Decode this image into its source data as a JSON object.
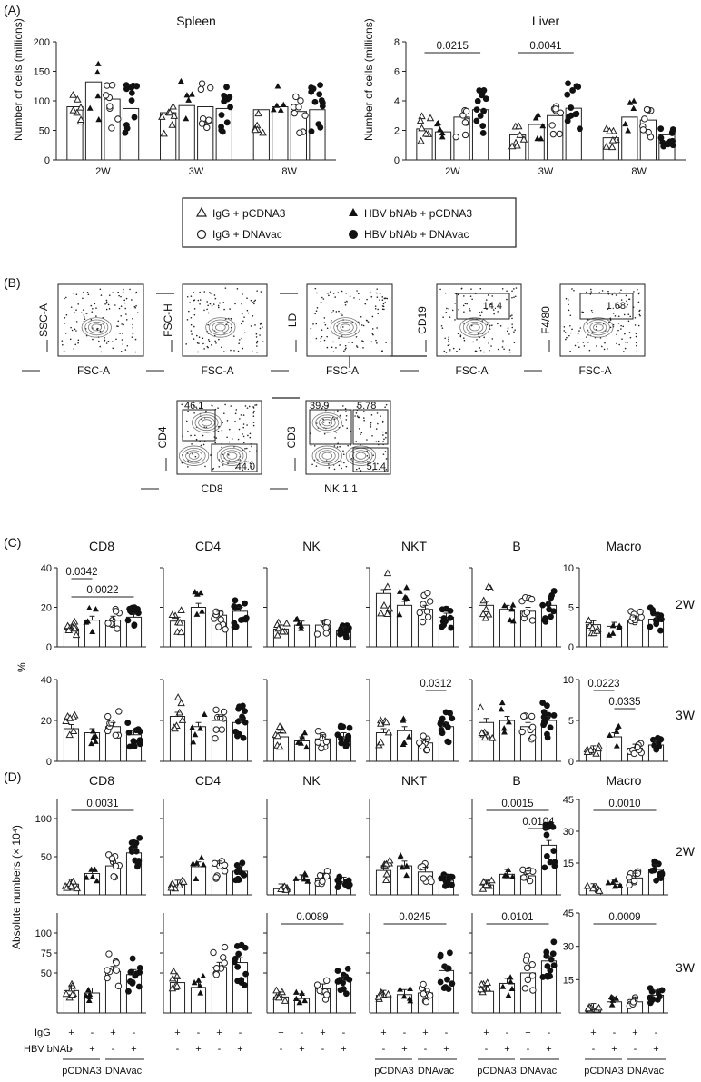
{
  "panels": {
    "A": "(A)",
    "B": "(B)",
    "C": "(C)",
    "D": "(D)"
  },
  "section_a": {
    "ylabel": "Number of cells (millions)",
    "groups": [
      "2W",
      "3W",
      "8W"
    ],
    "legend": [
      "IgG + pCDNA3",
      "HBV bNAb + pCDNA3",
      "IgG + DNAvac",
      "HBV bNAb + DNAvac"
    ]
  },
  "section_b": {
    "gates": [
      {
        "y": "SSC-A",
        "x": "FSC-A",
        "value": ""
      },
      {
        "y": "FSC-H",
        "x": "FSC-A",
        "value": ""
      },
      {
        "y": "LD",
        "x": "FSC-A",
        "value": ""
      },
      {
        "y": "CD19",
        "x": "FSC-A",
        "value": "14.4"
      },
      {
        "y": "F4/80",
        "x": "FSC-A",
        "value": "1.68"
      },
      {
        "y": "CD4",
        "x": "CD8",
        "values": [
          "46.1",
          "44.0"
        ]
      },
      {
        "y": "CD3",
        "x": "NK 1.1",
        "values": [
          "39.9",
          "5.78",
          "51.4"
        ]
      }
    ]
  },
  "section_c": {
    "ylabel": "%",
    "row_labels": [
      "2W",
      "3W"
    ]
  },
  "section_d": {
    "ylabel": "Absolute numbers (× 10⁴)",
    "row_labels": [
      "2W",
      "3W"
    ],
    "x_rows": {
      "IgG": [
        "+",
        "-",
        "+",
        "-"
      ],
      "HBV bNAb": [
        "-",
        "+",
        "-",
        "+"
      ],
      "groups": [
        "pCDNA3",
        "DNAvac"
      ],
      "row_names": [
        "IgG",
        "HBV bNAb"
      ]
    }
  },
  "chart_data": [
    {
      "type": "bar",
      "panel": "A",
      "title": "Spleen",
      "ylabel": "Number of cells (millions)",
      "ylim": [
        0,
        200
      ],
      "yticks": [
        0,
        50,
        100,
        150,
        200
      ],
      "categories": [
        "2W",
        "3W",
        "8W"
      ],
      "series": [
        {
          "name": "IgG + pCDNA3",
          "values": [
            90,
            80,
            85
          ]
        },
        {
          "name": "HBV bNAb + pCDNA3",
          "values": [
            132,
            92,
            90
          ]
        },
        {
          "name": "IgG + DNAvac",
          "values": [
            103,
            90,
            82
          ]
        },
        {
          "name": "HBV bNAb + DNAvac",
          "values": [
            87,
            87,
            85
          ]
        }
      ],
      "annotations": []
    },
    {
      "type": "bar",
      "panel": "A",
      "title": "Liver",
      "ylabel": "Number of cells (millions)",
      "ylim": [
        0,
        8
      ],
      "yticks": [
        0,
        2,
        4,
        6,
        8
      ],
      "categories": [
        "2W",
        "3W",
        "8W"
      ],
      "series": [
        {
          "name": "IgG + pCDNA3",
          "values": [
            2.1,
            1.7,
            1.5
          ]
        },
        {
          "name": "HBV bNAb + pCDNA3",
          "values": [
            1.9,
            2.4,
            2.9
          ]
        },
        {
          "name": "IgG + DNAvac",
          "values": [
            2.9,
            3.0,
            2.7
          ]
        },
        {
          "name": "HBV bNAb + DNAvac",
          "values": [
            3.4,
            3.5,
            1.7
          ]
        }
      ],
      "annotations": [
        {
          "text": "0.0215",
          "from": "2W:IgG + pCDNA3",
          "to": "2W:HBV bNAb + DNAvac"
        },
        {
          "text": "0.0041",
          "from": "3W:IgG + pCDNA3",
          "to": "3W:HBV bNAb + DNAvac"
        }
      ]
    },
    {
      "type": "bar",
      "panel": "C",
      "title": "CD8",
      "row": "2W",
      "ylim": [
        0,
        40
      ],
      "yticks": [
        0,
        20,
        40
      ],
      "categories": [
        "IgG + pCDNA3",
        "HBV bNAb + pCDNA3",
        "IgG + DNAvac",
        "HBV bNAb + DNAvac"
      ],
      "values": [
        9,
        13.5,
        13.5,
        15
      ],
      "annotations": [
        {
          "text": "0.0342",
          "from": 0,
          "to": 1
        },
        {
          "text": "0.0022",
          "from": 0,
          "to": 3
        }
      ]
    },
    {
      "type": "bar",
      "panel": "C",
      "title": "CD4",
      "row": "2W",
      "ylim": [
        0,
        40
      ],
      "yticks": [
        0,
        20,
        40
      ],
      "categories": [
        "IgG + pCDNA3",
        "HBV bNAb + pCDNA3",
        "IgG + DNAvac",
        "HBV bNAb + DNAvac"
      ],
      "values": [
        13,
        20,
        16,
        18
      ],
      "annotations": []
    },
    {
      "type": "bar",
      "panel": "C",
      "title": "NK",
      "row": "2W",
      "ylim": [
        0,
        40
      ],
      "yticks": [
        0,
        20,
        40
      ],
      "categories": [
        "IgG + pCDNA3",
        "HBV bNAb + pCDNA3",
        "IgG + DNAvac",
        "HBV bNAb + DNAvac"
      ],
      "values": [
        9,
        11,
        11,
        8
      ],
      "annotations": []
    },
    {
      "type": "bar",
      "panel": "C",
      "title": "NKT",
      "row": "2W",
      "ylim": [
        0,
        40
      ],
      "yticks": [
        0,
        20,
        40
      ],
      "categories": [
        "IgG + pCDNA3",
        "HBV bNAb + pCDNA3",
        "IgG + DNAvac",
        "HBV bNAb + DNAvac"
      ],
      "values": [
        27,
        21,
        19,
        15
      ],
      "annotations": []
    },
    {
      "type": "bar",
      "panel": "C",
      "title": "B",
      "row": "2W",
      "ylim": [
        0,
        40
      ],
      "yticks": [
        0,
        20,
        40
      ],
      "categories": [
        "IgG + pCDNA3",
        "HBV bNAb + pCDNA3",
        "IgG + DNAvac",
        "HBV bNAb + DNAvac"
      ],
      "values": [
        21,
        19,
        18,
        21
      ],
      "annotations": []
    },
    {
      "type": "bar",
      "panel": "C",
      "title": "Macro",
      "row": "2W",
      "ylim": [
        0,
        10
      ],
      "yticks": [
        0,
        5,
        10
      ],
      "categories": [
        "IgG + pCDNA3",
        "HBV bNAb + pCDNA3",
        "IgG + DNAvac",
        "HBV bNAb + DNAvac"
      ],
      "values": [
        2.8,
        2.6,
        3.3,
        3.5
      ],
      "annotations": []
    },
    {
      "type": "bar",
      "panel": "C",
      "title": "CD8",
      "row": "3W",
      "ylim": [
        0,
        40
      ],
      "yticks": [
        0,
        20,
        40
      ],
      "categories": [
        "IgG + pCDNA3",
        "HBV bNAb + pCDNA3",
        "IgG + DNAvac",
        "HBV bNAb + DNAvac"
      ],
      "values": [
        16,
        14,
        17,
        13
      ],
      "annotations": []
    },
    {
      "type": "bar",
      "panel": "C",
      "title": "CD4",
      "row": "3W",
      "ylim": [
        0,
        40
      ],
      "yticks": [
        0,
        20,
        40
      ],
      "categories": [
        "IgG + pCDNA3",
        "HBV bNAb + pCDNA3",
        "IgG + DNAvac",
        "HBV bNAb + DNAvac"
      ],
      "values": [
        22,
        17,
        20,
        19
      ],
      "annotations": []
    },
    {
      "type": "bar",
      "panel": "C",
      "title": "NK",
      "row": "3W",
      "ylim": [
        0,
        40
      ],
      "yticks": [
        0,
        20,
        40
      ],
      "categories": [
        "IgG + pCDNA3",
        "HBV bNAb + pCDNA3",
        "IgG + DNAvac",
        "HBV bNAb + DNAvac"
      ],
      "values": [
        12,
        10,
        11,
        12
      ],
      "annotations": []
    },
    {
      "type": "bar",
      "panel": "C",
      "title": "NKT",
      "row": "3W",
      "ylim": [
        0,
        40
      ],
      "yticks": [
        0,
        20,
        40
      ],
      "categories": [
        "IgG + pCDNA3",
        "HBV bNAb + pCDNA3",
        "IgG + DNAvac",
        "HBV bNAb + DNAvac"
      ],
      "values": [
        14,
        15,
        9,
        17
      ],
      "annotations": [
        {
          "text": "0.0312",
          "from": 2,
          "to": 3
        }
      ]
    },
    {
      "type": "bar",
      "panel": "C",
      "title": "B",
      "row": "3W",
      "ylim": [
        0,
        40
      ],
      "yticks": [
        0,
        20,
        40
      ],
      "categories": [
        "IgG + pCDNA3",
        "HBV bNAb + pCDNA3",
        "IgG + DNAvac",
        "HBV bNAb + DNAvac"
      ],
      "values": [
        19,
        20,
        17,
        20
      ],
      "annotations": []
    },
    {
      "type": "bar",
      "panel": "C",
      "title": "Macro",
      "row": "3W",
      "ylim": [
        0,
        10
      ],
      "yticks": [
        0,
        5,
        10
      ],
      "categories": [
        "IgG + pCDNA3",
        "HBV bNAb + pCDNA3",
        "IgG + DNAvac",
        "HBV bNAb + DNAvac"
      ],
      "values": [
        1.4,
        3.0,
        1.6,
        2.0
      ],
      "annotations": [
        {
          "text": "0.0223",
          "from": 0,
          "to": 1
        },
        {
          "text": "0.0335",
          "from": 1,
          "to": 2
        }
      ]
    },
    {
      "type": "bar",
      "panel": "D",
      "title": "CD8",
      "row": "2W",
      "ylim": [
        0,
        125
      ],
      "yticks": [
        50,
        100
      ],
      "categories": [
        "IgG + pCDNA3",
        "HBV bNAb + pCDNA3",
        "IgG + DNAvac",
        "HBV bNAb + DNAvac"
      ],
      "values": [
        14,
        28,
        38,
        55
      ],
      "annotations": [
        {
          "text": "0.0031",
          "from": 0,
          "to": 3
        }
      ]
    },
    {
      "type": "bar",
      "panel": "D",
      "title": "CD4",
      "row": "2W",
      "ylim": [
        0,
        125
      ],
      "yticks": [
        50,
        100
      ],
      "categories": [
        "IgG + pCDNA3",
        "HBV bNAb + pCDNA3",
        "IgG + DNAvac",
        "HBV bNAb + DNAvac"
      ],
      "values": [
        13,
        37,
        38,
        31
      ],
      "annotations": []
    },
    {
      "type": "bar",
      "panel": "D",
      "title": "NK",
      "row": "2W",
      "ylim": [
        0,
        125
      ],
      "yticks": [
        50,
        100
      ],
      "categories": [
        "IgG + pCDNA3",
        "HBV bNAb + pCDNA3",
        "IgG + DNAvac",
        "HBV bNAb + DNAvac"
      ],
      "values": [
        8,
        20,
        22,
        17
      ],
      "annotations": []
    },
    {
      "type": "bar",
      "panel": "D",
      "title": "NKT",
      "row": "2W",
      "ylim": [
        0,
        125
      ],
      "yticks": [
        50,
        100
      ],
      "categories": [
        "IgG + pCDNA3",
        "HBV bNAb + pCDNA3",
        "IgG + DNAvac",
        "HBV bNAb + DNAvac"
      ],
      "values": [
        32,
        38,
        30,
        19
      ],
      "annotations": []
    },
    {
      "type": "bar",
      "panel": "D",
      "title": "B",
      "row": "2W",
      "ylim": [
        0,
        125
      ],
      "yticks": [
        50,
        100
      ],
      "categories": [
        "IgG + pCDNA3",
        "HBV bNAb + pCDNA3",
        "IgG + DNAvac",
        "HBV bNAb + DNAvac"
      ],
      "values": [
        13,
        27,
        25,
        65
      ],
      "annotations": [
        {
          "text": "0.0015",
          "from": 0,
          "to": 3
        },
        {
          "text": "0.0104",
          "from": 2,
          "to": 3
        }
      ]
    },
    {
      "type": "bar",
      "panel": "D",
      "title": "Macro",
      "row": "2W",
      "ylim": [
        0,
        45
      ],
      "yticks": [
        15,
        30,
        45
      ],
      "categories": [
        "IgG + pCDNA3",
        "HBV bNAb + pCDNA3",
        "IgG + DNAvac",
        "HBV bNAb + DNAvac"
      ],
      "values": [
        3,
        5,
        8,
        12
      ],
      "annotations": [
        {
          "text": "0.0010",
          "from": 0,
          "to": 3
        }
      ]
    },
    {
      "type": "bar",
      "panel": "D",
      "title": "CD8",
      "row": "3W",
      "ylim": [
        0,
        125
      ],
      "yticks": [
        50,
        75,
        100
      ],
      "categories": [
        "IgG + pCDNA3",
        "HBV bNAb + pCDNA3",
        "IgG + DNAvac",
        "HBV bNAb + DNAvac"
      ],
      "values": [
        28,
        25,
        52,
        48
      ],
      "annotations": []
    },
    {
      "type": "bar",
      "panel": "D",
      "title": "CD4",
      "row": "3W",
      "ylim": [
        0,
        125
      ],
      "yticks": [
        50,
        75,
        100
      ],
      "categories": [
        "IgG + pCDNA3",
        "HBV bNAb + pCDNA3",
        "IgG + DNAvac",
        "HBV bNAb + DNAvac"
      ],
      "values": [
        38,
        32,
        57,
        63
      ],
      "annotations": []
    },
    {
      "type": "bar",
      "panel": "D",
      "title": "NK",
      "row": "3W",
      "ylim": [
        0,
        125
      ],
      "yticks": [
        50,
        75,
        100
      ],
      "categories": [
        "IgG + pCDNA3",
        "HBV bNAb + pCDNA3",
        "IgG + DNAvac",
        "HBV bNAb + DNAvac"
      ],
      "values": [
        20,
        18,
        30,
        40
      ],
      "annotations": [
        {
          "text": "0.0089",
          "from": 0,
          "to": 3
        }
      ]
    },
    {
      "type": "bar",
      "panel": "D",
      "title": "NKT",
      "row": "3W",
      "ylim": [
        0,
        125
      ],
      "yticks": [
        50,
        75,
        100
      ],
      "categories": [
        "IgG + pCDNA3",
        "HBV bNAb + pCDNA3",
        "IgG + DNAvac",
        "HBV bNAb + DNAvac"
      ],
      "values": [
        22,
        23,
        25,
        53
      ],
      "annotations": [
        {
          "text": "0.0245",
          "from": 0,
          "to": 3
        }
      ]
    },
    {
      "type": "bar",
      "panel": "D",
      "title": "B",
      "row": "3W",
      "ylim": [
        0,
        125
      ],
      "yticks": [
        50,
        75,
        100
      ],
      "categories": [
        "IgG + pCDNA3",
        "HBV bNAb + pCDNA3",
        "IgG + DNAvac",
        "HBV bNAb + DNAvac"
      ],
      "values": [
        27,
        37,
        50,
        65
      ],
      "annotations": [
        {
          "text": "0.0101",
          "from": 0,
          "to": 3
        }
      ]
    },
    {
      "type": "bar",
      "panel": "D",
      "title": "Macro",
      "row": "3W",
      "ylim": [
        0,
        45
      ],
      "yticks": [
        15,
        30,
        45
      ],
      "categories": [
        "IgG + pCDNA3",
        "HBV bNAb + pCDNA3",
        "IgG + DNAvac",
        "HBV bNAb + DNAvac"
      ],
      "values": [
        2,
        5,
        5,
        8
      ],
      "annotations": [
        {
          "text": "0.0009",
          "from": 0,
          "to": 3
        }
      ]
    }
  ]
}
